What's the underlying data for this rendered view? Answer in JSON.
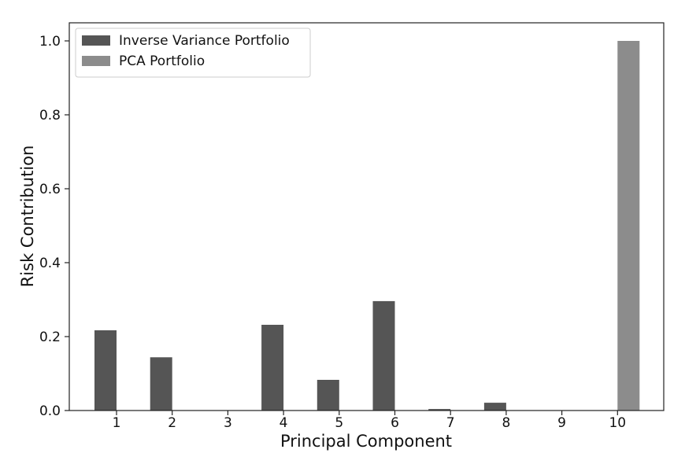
{
  "chart_data": {
    "type": "bar",
    "title": "",
    "xlabel": "Principal Component",
    "ylabel": "Risk Contribution",
    "categories": [
      "1",
      "2",
      "3",
      "4",
      "5",
      "6",
      "7",
      "8",
      "9",
      "10"
    ],
    "yticks": [
      "0.0",
      "0.2",
      "0.4",
      "0.6",
      "0.8",
      "1.0"
    ],
    "ylim": [
      0,
      1.05
    ],
    "grid": false,
    "legend_position": "top-left",
    "series": [
      {
        "name": "Inverse Variance Portfolio",
        "color": "#555555",
        "values": [
          0.217,
          0.144,
          0.001,
          0.232,
          0.083,
          0.296,
          0.004,
          0.021,
          0.001,
          0.001
        ]
      },
      {
        "name": "PCA Portfolio",
        "color": "#8c8c8c",
        "values": [
          0,
          0,
          0,
          0,
          0,
          0,
          0,
          0,
          0,
          1.0
        ]
      }
    ]
  }
}
